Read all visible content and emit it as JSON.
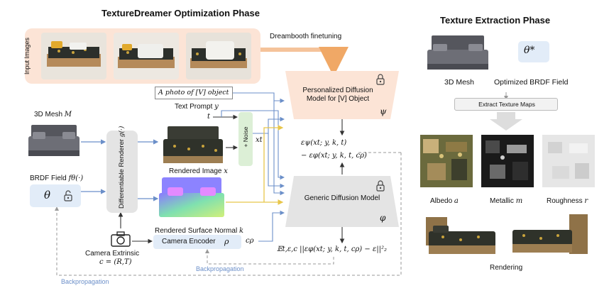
{
  "opt_phase": {
    "title": "TextureDreamer Optimization Phase",
    "input_images_label": "Input Images",
    "dreambooth_label": "Dreambooth finetuning",
    "prompt_box_text": "A photo of [V] object",
    "text_prompt_label": "Text Prompt",
    "text_prompt_var": "y",
    "t_var": "t",
    "noise_label": "+ Noise",
    "xt_var": "xt",
    "mesh_label": "3D Mesh",
    "mesh_var": "M",
    "renderer_label": "Differentiable Renderer",
    "renderer_var": "g(·)",
    "rendered_image_label": "Rendered Image",
    "rendered_image_var": "x",
    "rendered_normal_label": "Rendered Surface Normal",
    "rendered_normal_var": "k",
    "brdf_label": "BRDF Field",
    "brdf_var": "fθ(·)",
    "theta": "θ",
    "camera_label": "Camera Extrinsic",
    "camera_var": "c = (R,T)",
    "camera_encoder_label": "Camera Encoder",
    "rho": "ρ",
    "c_rho": "cρ",
    "personalized_model": "Personalized Diffusion Model for [V] Object",
    "psi": "ψ",
    "generic_model": "Generic Diffusion Model",
    "phi": "φ",
    "eps_line1": "εψ(xt; y, k, t)",
    "eps_line2": "− εφ(xt; y, k, t, cρ)",
    "loss_expr": "𝔼t,ε,c ||εφ(xt; y, k, t, cρ) − ε||²₂",
    "backprop1": "Backpropagation",
    "backprop2": "Backpropagation"
  },
  "extract_phase": {
    "title": "Texture Extraction Phase",
    "theta_star": "θ*",
    "mesh_label": "3D Mesh",
    "brdf_label": "Optimized BRDF Field",
    "extract_label": "Extract Texture Maps",
    "albedo_label": "Albedo",
    "albedo_var": "a",
    "metallic_label": "Metallic",
    "metallic_var": "m",
    "roughness_label": "Roughness",
    "roughness_var": "r",
    "rendering_label": "Rendering"
  },
  "colors": {
    "peach": "#fce4d6",
    "light_blue": "#e2ecf8",
    "gray_box": "#e4e4e4",
    "green_box": "#dcefd6",
    "arrow_blue": "#6b8fc9",
    "arrow_yellow": "#e8c64a",
    "arrow_orange": "#f0a866"
  }
}
